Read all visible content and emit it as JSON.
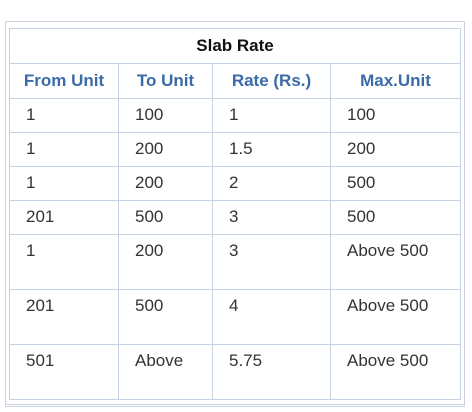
{
  "table": {
    "title": "Slab Rate",
    "headers": [
      "From Unit",
      "To Unit",
      "Rate (Rs.)",
      "Max.Unit"
    ],
    "rows": [
      [
        "1",
        "100",
        "1",
        "100"
      ],
      [
        "1",
        "200",
        "1.5",
        "200"
      ],
      [
        "1",
        "200",
        "2",
        "500"
      ],
      [
        "201",
        "500",
        "3",
        "500"
      ],
      [
        "1",
        "200",
        "3",
        "Above 500"
      ],
      [
        "201",
        "500",
        "4",
        "Above 500"
      ],
      [
        "501",
        "Above",
        "5.75",
        "Above 500"
      ]
    ]
  }
}
